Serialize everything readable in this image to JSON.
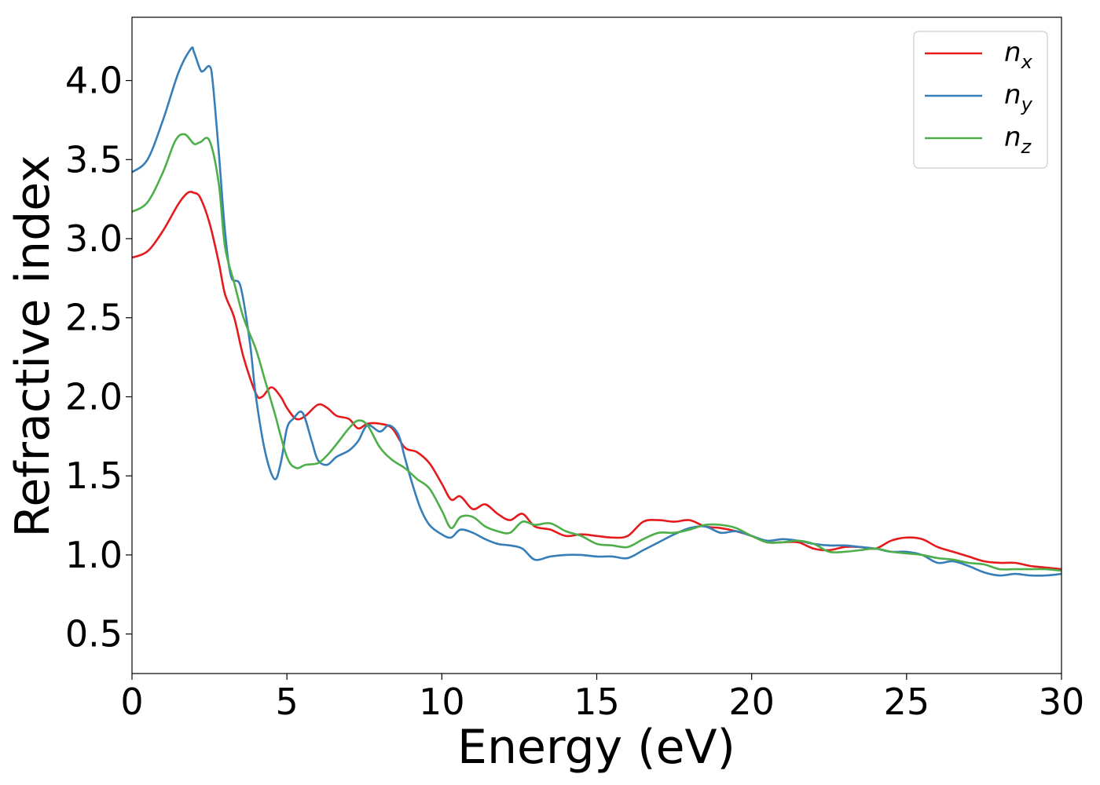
{
  "chart_data": {
    "type": "line",
    "title": "",
    "xlabel": "Energy (eV)",
    "ylabel": "Refractive index",
    "xlim": [
      0,
      30
    ],
    "ylim": [
      0.25,
      4.4
    ],
    "xticks": [
      "0",
      "5",
      "10",
      "15",
      "20",
      "25",
      "30"
    ],
    "yticks": [
      "0.5",
      "1.0",
      "1.5",
      "2.0",
      "2.5",
      "3.0",
      "3.5",
      "4.0"
    ],
    "grid": false,
    "legend_position": "top-right",
    "series": [
      {
        "name": "n_x",
        "label_base": "n",
        "label_sub": "x",
        "color": "#e41a1c",
        "x": [
          0,
          0.5,
          1.0,
          1.5,
          1.8,
          2.0,
          2.2,
          2.5,
          2.8,
          3.0,
          3.3,
          3.6,
          4.0,
          4.2,
          4.5,
          4.8,
          5.0,
          5.3,
          5.6,
          6.0,
          6.3,
          6.6,
          7.0,
          7.3,
          7.6,
          8.0,
          8.4,
          8.8,
          9.2,
          9.6,
          10.0,
          10.3,
          10.6,
          11.0,
          11.4,
          11.8,
          12.2,
          12.6,
          13.0,
          13.5,
          14.0,
          14.5,
          15.0,
          15.5,
          16.0,
          16.5,
          17.0,
          17.5,
          18.0,
          18.5,
          19.0,
          19.5,
          20.0,
          20.5,
          21.0,
          21.5,
          22.0,
          22.5,
          23.0,
          23.5,
          24.0,
          24.5,
          25.0,
          25.5,
          26.0,
          26.5,
          27.0,
          27.5,
          28.0,
          28.5,
          29.0,
          29.5,
          30.0
        ],
        "y": [
          2.88,
          2.92,
          3.05,
          3.22,
          3.29,
          3.29,
          3.26,
          3.1,
          2.85,
          2.65,
          2.5,
          2.25,
          2.02,
          2.0,
          2.06,
          2.0,
          1.93,
          1.86,
          1.88,
          1.95,
          1.93,
          1.88,
          1.86,
          1.8,
          1.83,
          1.83,
          1.8,
          1.68,
          1.65,
          1.58,
          1.45,
          1.35,
          1.37,
          1.29,
          1.32,
          1.26,
          1.22,
          1.26,
          1.18,
          1.16,
          1.12,
          1.13,
          1.12,
          1.11,
          1.12,
          1.21,
          1.22,
          1.21,
          1.22,
          1.18,
          1.17,
          1.15,
          1.12,
          1.08,
          1.08,
          1.08,
          1.04,
          1.03,
          1.05,
          1.05,
          1.04,
          1.09,
          1.11,
          1.1,
          1.05,
          1.02,
          0.99,
          0.96,
          0.95,
          0.95,
          0.93,
          0.92,
          0.91
        ]
      },
      {
        "name": "n_y",
        "label_base": "n",
        "label_sub": "y",
        "color": "#377eb8",
        "x": [
          0,
          0.5,
          1.0,
          1.5,
          1.9,
          2.0,
          2.2,
          2.3,
          2.5,
          2.6,
          2.8,
          3.0,
          3.2,
          3.5,
          3.8,
          4.0,
          4.3,
          4.6,
          4.8,
          5.0,
          5.2,
          5.5,
          5.8,
          6.0,
          6.3,
          6.6,
          7.0,
          7.3,
          7.6,
          8.0,
          8.3,
          8.6,
          8.8,
          9.0,
          9.3,
          9.6,
          10.0,
          10.3,
          10.6,
          11.0,
          11.4,
          11.8,
          12.2,
          12.6,
          13.0,
          13.5,
          14.0,
          14.5,
          15.0,
          15.5,
          16.0,
          16.5,
          17.0,
          17.5,
          18.0,
          18.5,
          19.0,
          19.5,
          20.0,
          20.5,
          21.0,
          21.5,
          22.0,
          22.5,
          23.0,
          23.5,
          24.0,
          24.5,
          25.0,
          25.5,
          26.0,
          26.5,
          27.0,
          27.5,
          28.0,
          28.5,
          29.0,
          29.5,
          30.0
        ],
        "y": [
          3.42,
          3.5,
          3.75,
          4.05,
          4.2,
          4.18,
          4.07,
          4.06,
          4.09,
          4.0,
          3.55,
          3.05,
          2.76,
          2.7,
          2.35,
          2.0,
          1.65,
          1.48,
          1.58,
          1.8,
          1.86,
          1.9,
          1.72,
          1.6,
          1.57,
          1.62,
          1.66,
          1.72,
          1.82,
          1.78,
          1.82,
          1.76,
          1.62,
          1.48,
          1.3,
          1.19,
          1.13,
          1.11,
          1.16,
          1.14,
          1.1,
          1.07,
          1.06,
          1.04,
          0.97,
          0.99,
          1.0,
          1.0,
          0.99,
          0.99,
          0.98,
          1.03,
          1.08,
          1.13,
          1.17,
          1.18,
          1.14,
          1.15,
          1.12,
          1.09,
          1.1,
          1.09,
          1.07,
          1.06,
          1.06,
          1.05,
          1.04,
          1.02,
          1.02,
          1.0,
          0.95,
          0.96,
          0.93,
          0.89,
          0.87,
          0.88,
          0.87,
          0.87,
          0.88
        ]
      },
      {
        "name": "n_z",
        "label_base": "n",
        "label_sub": "z",
        "color": "#4daf4a",
        "x": [
          0,
          0.5,
          1.0,
          1.4,
          1.7,
          2.0,
          2.2,
          2.5,
          2.8,
          3.0,
          3.3,
          3.6,
          4.0,
          4.3,
          4.6,
          5.0,
          5.3,
          5.6,
          6.0,
          6.3,
          6.6,
          7.0,
          7.3,
          7.6,
          8.0,
          8.4,
          8.8,
          9.2,
          9.6,
          10.0,
          10.3,
          10.6,
          11.0,
          11.4,
          11.8,
          12.2,
          12.6,
          13.0,
          13.5,
          14.0,
          14.5,
          15.0,
          15.5,
          16.0,
          16.5,
          17.0,
          17.5,
          18.0,
          18.5,
          19.0,
          19.5,
          20.0,
          20.5,
          21.0,
          21.5,
          22.0,
          22.5,
          23.0,
          23.5,
          24.0,
          24.5,
          25.0,
          25.5,
          26.0,
          26.5,
          27.0,
          27.5,
          28.0,
          28.5,
          29.0,
          29.5,
          30.0
        ],
        "y": [
          3.17,
          3.23,
          3.42,
          3.62,
          3.66,
          3.6,
          3.61,
          3.62,
          3.35,
          2.95,
          2.72,
          2.5,
          2.3,
          2.1,
          1.9,
          1.62,
          1.55,
          1.57,
          1.58,
          1.63,
          1.7,
          1.8,
          1.85,
          1.82,
          1.68,
          1.6,
          1.55,
          1.48,
          1.42,
          1.28,
          1.17,
          1.24,
          1.24,
          1.18,
          1.15,
          1.14,
          1.21,
          1.19,
          1.2,
          1.15,
          1.12,
          1.07,
          1.06,
          1.05,
          1.1,
          1.14,
          1.14,
          1.16,
          1.19,
          1.19,
          1.17,
          1.12,
          1.08,
          1.08,
          1.09,
          1.07,
          1.02,
          1.02,
          1.03,
          1.04,
          1.02,
          1.01,
          1.0,
          0.98,
          0.97,
          0.95,
          0.94,
          0.91,
          0.91,
          0.91,
          0.91,
          0.9
        ]
      }
    ]
  }
}
